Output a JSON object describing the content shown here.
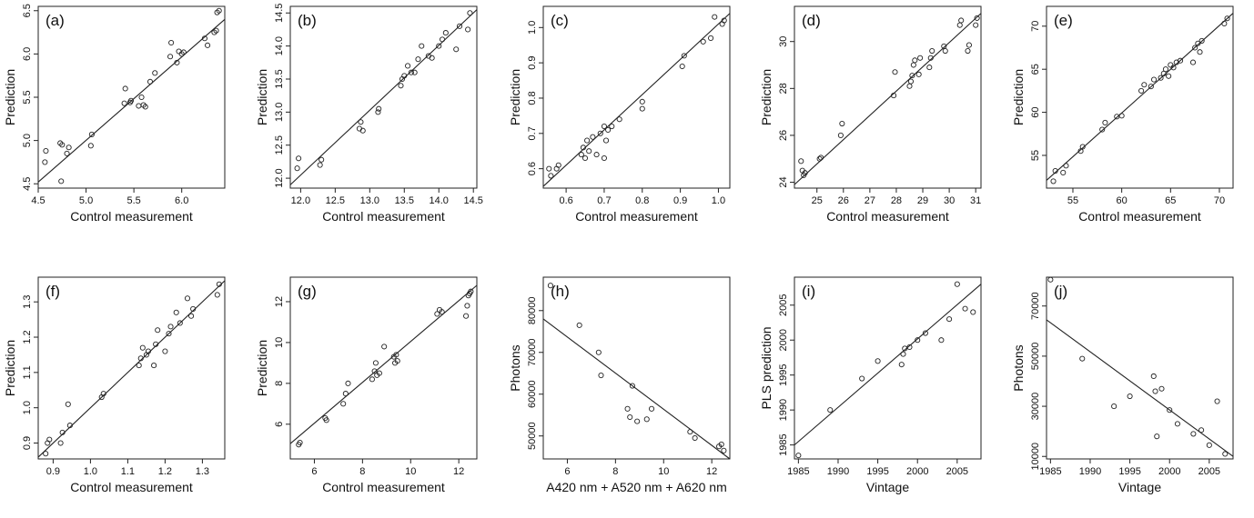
{
  "chart_data": [
    {
      "type": "scatter",
      "panel_label": "(a)",
      "xlabel": "Control measurement",
      "ylabel": "Prediction",
      "xlim": [
        4.5,
        6.45
      ],
      "ylim": [
        4.45,
        6.55
      ],
      "xticks": [
        4.5,
        5.0,
        5.5,
        6.0
      ],
      "xtick_labels": [
        "4.5",
        "5.0",
        "5.5",
        "6.0"
      ],
      "yticks": [
        4.5,
        5.0,
        5.5,
        6.0,
        6.5
      ],
      "ytick_labels": [
        "4.5",
        "5.0",
        "5.5",
        "6.0",
        "6.5"
      ],
      "x": [
        4.57,
        4.58,
        4.73,
        4.74,
        4.75,
        4.8,
        4.82,
        5.05,
        5.06,
        5.4,
        5.41,
        5.46,
        5.47,
        5.55,
        5.58,
        5.6,
        5.62,
        5.67,
        5.72,
        5.88,
        5.89,
        5.95,
        5.97,
        6.0,
        6.02,
        6.24,
        6.27,
        6.34,
        6.36,
        6.37,
        6.39
      ],
      "y": [
        4.75,
        4.88,
        4.97,
        4.53,
        4.95,
        4.85,
        4.92,
        4.94,
        5.07,
        5.43,
        5.6,
        5.44,
        5.46,
        5.4,
        5.5,
        5.41,
        5.39,
        5.68,
        5.78,
        5.97,
        6.13,
        5.9,
        6.03,
        6.0,
        6.02,
        6.18,
        6.1,
        6.25,
        6.27,
        6.48,
        6.5
      ],
      "fit_line": [
        [
          4.5,
          4.52
        ],
        [
          6.45,
          6.4
        ]
      ]
    },
    {
      "type": "scatter",
      "panel_label": "(b)",
      "xlabel": "Control measurement",
      "ylabel": "Prediction",
      "xlim": [
        11.85,
        14.55
      ],
      "ylim": [
        11.85,
        14.6
      ],
      "xticks": [
        12.0,
        12.5,
        13.0,
        13.5,
        14.0,
        14.5
      ],
      "xtick_labels": [
        "12.0",
        "12.5",
        "13.0",
        "13.5",
        "14.0",
        "14.5"
      ],
      "yticks": [
        12.0,
        12.5,
        13.0,
        13.5,
        14.0,
        14.5
      ],
      "ytick_labels": [
        "12.0",
        "12.5",
        "13.0",
        "13.5",
        "14.0",
        "14.5"
      ],
      "x": [
        11.95,
        11.97,
        12.28,
        12.3,
        12.85,
        12.87,
        12.9,
        13.12,
        13.13,
        13.45,
        13.47,
        13.5,
        13.55,
        13.6,
        13.65,
        13.7,
        13.75,
        13.85,
        13.9,
        14.0,
        14.05,
        14.1,
        14.25,
        14.3,
        14.42,
        14.45
      ],
      "y": [
        12.15,
        12.3,
        12.2,
        12.28,
        12.75,
        12.85,
        12.72,
        13.0,
        13.05,
        13.4,
        13.5,
        13.55,
        13.7,
        13.6,
        13.6,
        13.8,
        14.0,
        13.85,
        13.82,
        14.0,
        14.1,
        14.2,
        13.95,
        14.3,
        14.25,
        14.5
      ],
      "fit_line": [
        [
          11.85,
          11.9
        ],
        [
          14.55,
          14.55
        ]
      ]
    },
    {
      "type": "scatter",
      "panel_label": "(c)",
      "xlabel": "Control measurement",
      "ylabel": "Prediction",
      "xlim": [
        0.54,
        1.03
      ],
      "ylim": [
        0.545,
        1.06
      ],
      "xticks": [
        0.6,
        0.7,
        0.8,
        0.9,
        1.0
      ],
      "xtick_labels": [
        "0.6",
        "0.7",
        "0.8",
        "0.9",
        "1.0"
      ],
      "yticks": [
        0.6,
        0.7,
        0.8,
        0.9,
        1.0
      ],
      "ytick_labels": [
        "0.6",
        "0.7",
        "0.8",
        "0.9",
        "1.0"
      ],
      "x": [
        0.555,
        0.56,
        0.575,
        0.58,
        0.64,
        0.645,
        0.65,
        0.655,
        0.66,
        0.67,
        0.68,
        0.69,
        0.7,
        0.7,
        0.705,
        0.71,
        0.72,
        0.74,
        0.8,
        0.8,
        0.905,
        0.91,
        0.96,
        0.98,
        0.99,
        1.01,
        1.015
      ],
      "y": [
        0.6,
        0.58,
        0.6,
        0.61,
        0.64,
        0.66,
        0.63,
        0.68,
        0.65,
        0.69,
        0.64,
        0.7,
        0.72,
        0.63,
        0.68,
        0.71,
        0.72,
        0.74,
        0.79,
        0.77,
        0.89,
        0.92,
        0.96,
        0.97,
        1.03,
        1.01,
        1.02
      ],
      "fit_line": [
        [
          0.54,
          0.55
        ],
        [
          1.03,
          1.04
        ]
      ]
    },
    {
      "type": "scatter",
      "panel_label": "(d)",
      "xlabel": "Control measurement",
      "ylabel": "Prediction",
      "xlim": [
        24.15,
        31.2
      ],
      "ylim": [
        23.75,
        31.5
      ],
      "xticks": [
        25,
        26,
        27,
        28,
        29,
        30,
        31
      ],
      "xtick_labels": [
        "25",
        "26",
        "27",
        "28",
        "29",
        "30",
        "31"
      ],
      "yticks": [
        24,
        26,
        28,
        30
      ],
      "ytick_labels": [
        "24",
        "26",
        "28",
        "30"
      ],
      "x": [
        24.4,
        24.45,
        24.5,
        24.55,
        25.1,
        25.15,
        25.9,
        25.95,
        27.9,
        27.95,
        28.5,
        28.55,
        28.6,
        28.65,
        28.7,
        28.85,
        28.9,
        29.25,
        29.3,
        29.35,
        29.8,
        29.85,
        30.4,
        30.45,
        30.7,
        30.75,
        31.0,
        31.05
      ],
      "y": [
        24.9,
        24.5,
        24.3,
        24.4,
        25.0,
        25.05,
        26.0,
        26.5,
        27.7,
        28.7,
        28.1,
        28.3,
        28.55,
        29.0,
        29.2,
        28.6,
        29.3,
        28.9,
        29.3,
        29.6,
        29.8,
        29.6,
        30.7,
        30.9,
        29.6,
        29.85,
        30.7,
        31.0
      ],
      "fit_line": [
        [
          24.15,
          23.9
        ],
        [
          31.2,
          31.2
        ]
      ]
    },
    {
      "type": "scatter",
      "panel_label": "(e)",
      "xlabel": "Control measurement",
      "ylabel": "Prediction",
      "xlim": [
        52.3,
        71.4
      ],
      "ylim": [
        51.2,
        72.3
      ],
      "xticks": [
        55,
        60,
        65,
        70
      ],
      "xtick_labels": [
        "55",
        "60",
        "65",
        "70"
      ],
      "yticks": [
        55,
        60,
        65,
        70
      ],
      "ytick_labels": [
        "55",
        "60",
        "65",
        "70"
      ],
      "x": [
        53.0,
        53.2,
        54.0,
        54.3,
        55.8,
        56.0,
        58.0,
        58.3,
        59.5,
        60.0,
        62.0,
        62.3,
        63.0,
        63.3,
        64.0,
        64.3,
        64.5,
        64.8,
        65.0,
        65.3,
        65.6,
        66.0,
        67.3,
        67.5,
        67.8,
        68.0,
        68.2,
        70.5,
        70.8
      ],
      "y": [
        52.0,
        53.2,
        53.0,
        53.8,
        55.5,
        56.0,
        58.0,
        58.8,
        59.5,
        59.6,
        62.5,
        63.2,
        63.0,
        63.8,
        64.0,
        64.5,
        65.0,
        64.2,
        65.5,
        65.2,
        65.8,
        66.0,
        65.8,
        67.5,
        68.0,
        67.0,
        68.3,
        70.3,
        70.9
      ],
      "fit_line": [
        [
          52.3,
          52.1
        ],
        [
          71.4,
          71.5
        ]
      ]
    },
    {
      "type": "scatter",
      "panel_label": "(f)",
      "xlabel": "Control measurement",
      "ylabel": "Prediction",
      "xlim": [
        0.86,
        1.36
      ],
      "ylim": [
        0.855,
        1.37
      ],
      "xticks": [
        0.9,
        1.0,
        1.1,
        1.2,
        1.3
      ],
      "xtick_labels": [
        "0.9",
        "1.0",
        "1.1",
        "1.2",
        "1.3"
      ],
      "yticks": [
        0.9,
        1.0,
        1.1,
        1.2,
        1.3
      ],
      "ytick_labels": [
        "0.9",
        "1.0",
        "1.1",
        "1.2",
        "1.3"
      ],
      "x": [
        0.88,
        0.885,
        0.89,
        0.92,
        0.925,
        0.94,
        0.945,
        1.03,
        1.035,
        1.13,
        1.135,
        1.14,
        1.15,
        1.155,
        1.17,
        1.175,
        1.18,
        1.2,
        1.21,
        1.215,
        1.23,
        1.24,
        1.26,
        1.27,
        1.275,
        1.34,
        1.345
      ],
      "y": [
        0.87,
        0.9,
        0.91,
        0.9,
        0.93,
        1.01,
        0.95,
        1.03,
        1.04,
        1.12,
        1.14,
        1.17,
        1.15,
        1.16,
        1.12,
        1.18,
        1.22,
        1.16,
        1.21,
        1.23,
        1.27,
        1.24,
        1.31,
        1.26,
        1.28,
        1.32,
        1.35
      ],
      "fit_line": [
        [
          0.86,
          0.86
        ],
        [
          1.36,
          1.36
        ]
      ]
    },
    {
      "type": "scatter",
      "panel_label": "(g)",
      "xlabel": "Control measurement",
      "ylabel": "Prediction",
      "xlim": [
        5.0,
        12.75
      ],
      "ylim": [
        4.3,
        13.2
      ],
      "xticks": [
        6,
        8,
        10,
        12
      ],
      "xtick_labels": [
        "6",
        "8",
        "10",
        "12"
      ],
      "yticks": [
        6,
        8,
        10,
        12
      ],
      "ytick_labels": [
        "6",
        "8",
        "10",
        "12"
      ],
      "x": [
        5.35,
        5.4,
        6.45,
        6.5,
        7.2,
        7.3,
        7.4,
        8.4,
        8.5,
        8.55,
        8.6,
        8.7,
        8.9,
        9.3,
        9.35,
        9.4,
        9.45,
        11.1,
        11.2,
        11.3,
        12.3,
        12.35,
        12.4,
        12.45,
        12.5
      ],
      "y": [
        5.0,
        5.1,
        6.3,
        6.2,
        7.0,
        7.5,
        8.0,
        8.2,
        8.6,
        9.0,
        8.4,
        8.5,
        9.8,
        9.3,
        9.0,
        9.4,
        9.1,
        11.4,
        11.6,
        11.5,
        11.3,
        11.8,
        12.3,
        12.4,
        12.5
      ],
      "fit_line": [
        [
          5.0,
          5.05
        ],
        [
          12.75,
          12.8
        ]
      ]
    },
    {
      "type": "scatter",
      "panel_label": "(h)",
      "xlabel": "A420 nm + A520 nm + A620 nm",
      "ylabel": "Photons",
      "xlim": [
        5.0,
        12.75
      ],
      "ylim": [
        44500,
        88000
      ],
      "xticks": [
        6,
        8,
        10,
        12
      ],
      "xtick_labels": [
        "6",
        "8",
        "10",
        "12"
      ],
      "yticks": [
        50000,
        60000,
        70000,
        80000
      ],
      "ytick_labels": [
        "50000",
        "60000",
        "70000",
        "80000"
      ],
      "x": [
        5.3,
        6.5,
        7.3,
        7.4,
        8.5,
        8.6,
        8.7,
        8.9,
        9.3,
        9.5,
        11.1,
        11.3,
        12.3,
        12.4,
        12.5
      ],
      "y": [
        86000,
        76500,
        70000,
        64500,
        56500,
        54500,
        62000,
        53500,
        54000,
        56500,
        51000,
        49500,
        47500,
        48000,
        46500
      ],
      "fit_line": [
        [
          5.0,
          78000
        ],
        [
          12.75,
          44500
        ]
      ]
    },
    {
      "type": "scatter",
      "panel_label": "(i)",
      "xlabel": "Vintage",
      "ylabel": "PLS prediction",
      "xlim": [
        1984.5,
        2008
      ],
      "ylim": [
        1983,
        2009
      ],
      "xticks": [
        1985,
        1990,
        1995,
        2000,
        2005
      ],
      "xtick_labels": [
        "1985",
        "1990",
        "1995",
        "2000",
        "2005"
      ],
      "yticks": [
        1985,
        1990,
        1995,
        2000,
        2005
      ],
      "ytick_labels": [
        "1985",
        "1990",
        "1995",
        "2000",
        "2005"
      ],
      "x": [
        1985,
        1989,
        1993,
        1995,
        1998,
        1998.2,
        1998.4,
        1999,
        2000,
        2001,
        2003,
        2004,
        2005,
        2006,
        2007
      ],
      "y": [
        1983.5,
        1990,
        1994.5,
        1997,
        1996.5,
        1998,
        1998.8,
        1999,
        2000,
        2001,
        2000,
        2003,
        2008,
        2004.5,
        2004
      ],
      "fit_line": [
        [
          1984.5,
          1985
        ],
        [
          2008,
          2008
        ]
      ]
    },
    {
      "type": "scatter",
      "panel_label": "(j)",
      "xlabel": "Vintage",
      "ylabel": "Photons",
      "xlim": [
        1984.5,
        2008
      ],
      "ylim": [
        9000,
        81500
      ],
      "xticks": [
        1985,
        1990,
        1995,
        2000,
        2005
      ],
      "xtick_labels": [
        "1985",
        "1990",
        "1995",
        "2000",
        "2005"
      ],
      "yticks": [
        10000,
        30000,
        50000,
        70000
      ],
      "ytick_labels": [
        "10000",
        "30000",
        "50000",
        "70000"
      ],
      "x": [
        1985,
        1989,
        1993,
        1995,
        1998,
        1998.2,
        1998.4,
        1999,
        2000,
        2001,
        2003,
        2004,
        2005,
        2006,
        2007
      ],
      "y": [
        80500,
        49000,
        30000,
        34000,
        42000,
        36000,
        18000,
        37000,
        28500,
        23000,
        19000,
        20500,
        14500,
        32000,
        11000
      ],
      "fit_line": [
        [
          1984.5,
          64500
        ],
        [
          2008,
          10000
        ]
      ]
    }
  ]
}
